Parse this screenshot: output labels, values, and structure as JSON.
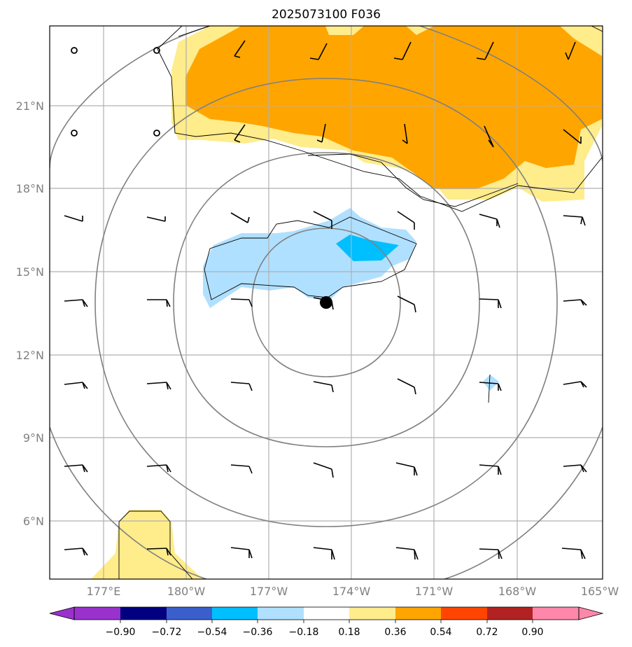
{
  "title": "2025073100 F036",
  "map": {
    "lat_labels": [
      "21°N",
      "18°N",
      "15°N",
      "12°N",
      "9°N",
      "6°N"
    ],
    "lon_labels": [
      "177°E",
      "180°W",
      "177°W",
      "174°W",
      "171°W",
      "168°W",
      "165°W"
    ],
    "storm_center": {
      "lon": -174.5,
      "lat": 13.8
    }
  },
  "colorbar": {
    "labels": [
      "−0.90",
      "−0.72",
      "−0.54",
      "−0.36",
      "−0.18",
      "0.18",
      "0.36",
      "0.54",
      "0.72",
      "0.90"
    ],
    "colors": {
      "neg_extend": "#9932cc",
      "neg_090": "#000080",
      "neg_072": "#3a5fcd",
      "neg_054": "#00bfff",
      "neg_036": "#b0e0ff",
      "neutral": "#ffffff",
      "pos_018": "#ffec8b",
      "pos_036": "#ffa500",
      "pos_054": "#ff4500",
      "pos_072": "#b22222",
      "pos_extend": "#ff88aa"
    }
  }
}
